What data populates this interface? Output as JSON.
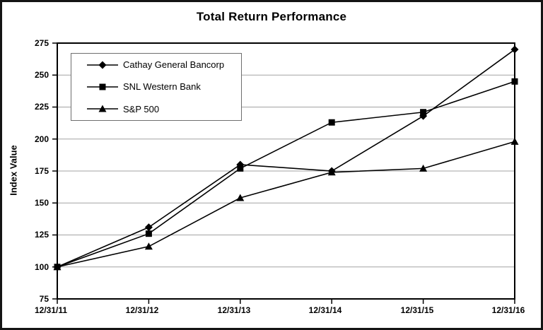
{
  "title": "Total Return Performance",
  "chart_data": {
    "type": "line",
    "x": [
      "12/31/11",
      "12/31/12",
      "12/31/13",
      "12/31/14",
      "12/31/15",
      "12/31/16"
    ],
    "series": [
      {
        "name": "Cathay General Bancorp",
        "marker": "diamond",
        "values": [
          100,
          131,
          180,
          175,
          218,
          270
        ]
      },
      {
        "name": "SNL Western Bank",
        "marker": "square",
        "values": [
          100,
          126,
          177,
          213,
          221,
          245
        ]
      },
      {
        "name": "S&P 500",
        "marker": "triangle",
        "values": [
          100,
          116,
          154,
          174,
          177,
          198
        ]
      }
    ],
    "xlabel": "",
    "ylabel": "Index Value",
    "ylim": [
      75,
      275
    ],
    "y_ticks": [
      275,
      250,
      225,
      200,
      175,
      150,
      125,
      100,
      75
    ],
    "grid": "horizontal",
    "legend_position": "top-left",
    "line_color": "#000000",
    "grid_color": "#a3a3a3",
    "frame_color": "#000000"
  }
}
